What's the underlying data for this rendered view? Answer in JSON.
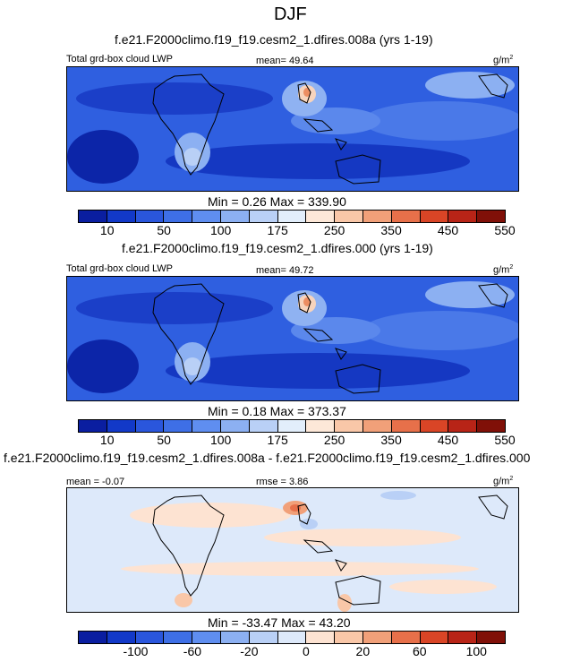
{
  "page": {
    "title": "DJF"
  },
  "palette": {
    "levels": [
      "#0a1ea0",
      "#1239c8",
      "#2a56dc",
      "#3e6fe6",
      "#5f8ef0",
      "#8cb0f2",
      "#b9d0f6",
      "#e2eefb",
      "#fde8d8",
      "#f9c7a8",
      "#f1a079",
      "#e7704a",
      "#d94526",
      "#b82417",
      "#801008"
    ],
    "diff_levels": [
      "#0a1ea0",
      "#1239c8",
      "#2a56dc",
      "#3e6fe6",
      "#5f8ef0",
      "#8cb0f2",
      "#b9d0f6",
      "#dde9fa",
      "#fde3d2",
      "#f9c7a8",
      "#f1a079",
      "#e7704a",
      "#d94526",
      "#b82417",
      "#801008"
    ]
  },
  "panels": [
    {
      "case": "f.e21.F2000climo.f19_f19.cesm2_1.dfires.008a (yrs 1-19)",
      "left_label": "Total grd-box cloud LWP",
      "center_label": "mean=  49.64",
      "units": "g/m",
      "units_sup": "2",
      "minmax": "Min =   0.26 Max = 339.90",
      "ticks": [
        "10",
        "50",
        "100",
        "175",
        "250",
        "350",
        "450",
        "550"
      ]
    },
    {
      "case": "f.e21.F2000climo.f19_f19.cesm2_1.dfires.000 (yrs 1-19)",
      "left_label": "Total grd-box cloud LWP",
      "center_label": "mean=  49.72",
      "units": "g/m",
      "units_sup": "2",
      "minmax": "Min =   0.18 Max = 373.37",
      "ticks": [
        "10",
        "50",
        "100",
        "175",
        "250",
        "350",
        "450",
        "550"
      ]
    },
    {
      "case": "f.e21.F2000climo.f19_f19.cesm2_1.dfires.008a - f.e21.F2000climo.f19_f19.cesm2_1.dfires.000",
      "left_label": "mean =  -0.07",
      "center_label": "rmse =   3.86",
      "units": "g/m",
      "units_sup": "2",
      "minmax": "Min = -33.47 Max =  43.20",
      "ticks": [
        "-100",
        "-60",
        "-20",
        "0",
        "20",
        "60",
        "100"
      ]
    }
  ]
}
